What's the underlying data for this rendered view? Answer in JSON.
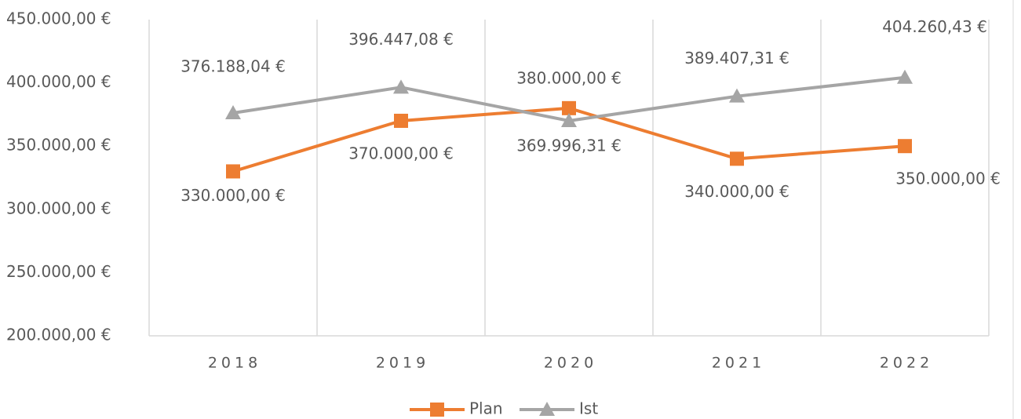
{
  "chart_data": {
    "type": "line",
    "categories": [
      "2018",
      "2019",
      "2020",
      "2021",
      "2022"
    ],
    "series": [
      {
        "name": "Plan",
        "color": "#ed7d31",
        "marker": "square",
        "values": [
          330000,
          370000,
          380000,
          340000,
          350000
        ],
        "value_labels": [
          "330.000,00 €",
          "370.000,00 €",
          "380.000,00 €",
          "340.000,00 €",
          "350.000,00 €"
        ]
      },
      {
        "name": "Ist",
        "color": "#a5a5a5",
        "marker": "triangle",
        "values": [
          376188.04,
          396447.08,
          369996.31,
          389407.31,
          404260.43
        ],
        "value_labels": [
          "376.188,04 €",
          "396.447,08 €",
          "369.996,31 €",
          "389.407,31 €",
          "404.260,43 €"
        ]
      }
    ],
    "ylim": [
      200000,
      450000
    ],
    "yticks": [
      {
        "value": 200000,
        "label": "200.000,00 €"
      },
      {
        "value": 250000,
        "label": "250.000,00 €"
      },
      {
        "value": 300000,
        "label": "300.000,00 €"
      },
      {
        "value": 350000,
        "label": "350.000,00 €"
      },
      {
        "value": 400000,
        "label": "400.000,00 €"
      },
      {
        "value": 450000,
        "label": "450.000,00 €"
      }
    ],
    "legend": "bottom"
  }
}
